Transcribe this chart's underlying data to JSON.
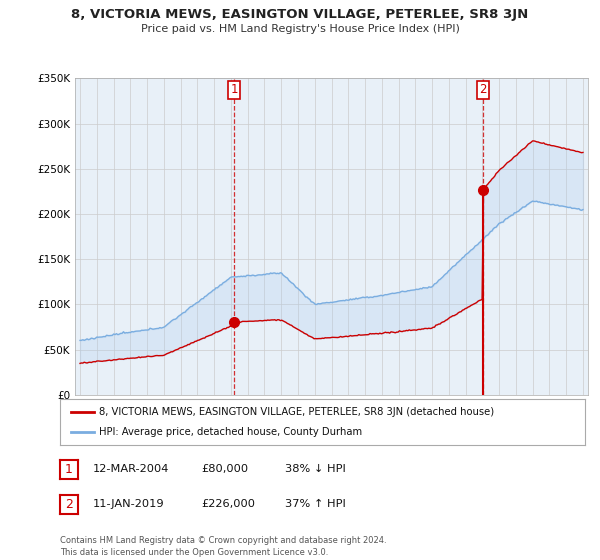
{
  "title": "8, VICTORIA MEWS, EASINGTON VILLAGE, PETERLEE, SR8 3JN",
  "subtitle": "Price paid vs. HM Land Registry's House Price Index (HPI)",
  "sale1": {
    "date_num": 2004.2,
    "price": 80000,
    "label": "1",
    "date_str": "12-MAR-2004",
    "pct": "38% ↓ HPI"
  },
  "sale2": {
    "date_num": 2019.03,
    "price": 226000,
    "label": "2",
    "date_str": "11-JAN-2019",
    "pct": "37% ↑ HPI"
  },
  "legend_red": "8, VICTORIA MEWS, EASINGTON VILLAGE, PETERLEE, SR8 3JN (detached house)",
  "legend_blue": "HPI: Average price, detached house, County Durham",
  "footer": "Contains HM Land Registry data © Crown copyright and database right 2024.\nThis data is licensed under the Open Government Licence v3.0.",
  "table_rows": [
    [
      "1",
      "12-MAR-2004",
      "£80,000",
      "38% ↓ HPI"
    ],
    [
      "2",
      "11-JAN-2019",
      "£226,000",
      "37% ↑ HPI"
    ]
  ],
  "red_color": "#cc0000",
  "blue_color": "#7aade0",
  "fill_color": "#ddeeff",
  "bg_color": "#ffffff",
  "grid_color": "#cccccc"
}
